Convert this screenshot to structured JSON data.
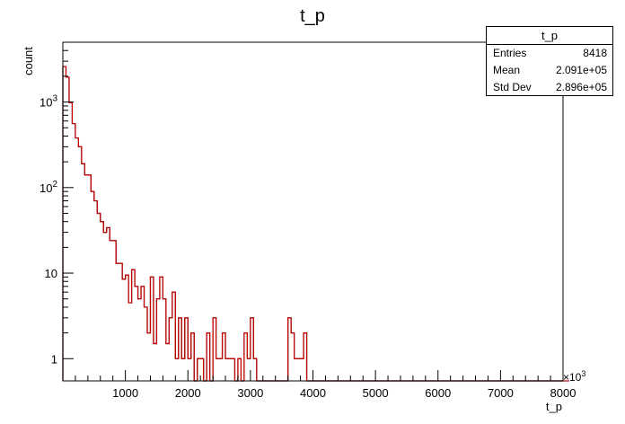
{
  "chart_data": {
    "type": "histogram",
    "title": "t_p",
    "xlabel": "t_p",
    "ylabel": "count",
    "x_axis_multiplier": "×10^3",
    "x_range": [
      0,
      8000
    ],
    "y_scale": "log",
    "y_range": [
      0.55,
      5000
    ],
    "x_tick_labels": [
      "1000",
      "2000",
      "3000",
      "4000",
      "5000",
      "6000",
      "7000",
      "8000"
    ],
    "x_ticks": [
      1000,
      2000,
      3000,
      4000,
      5000,
      6000,
      7000,
      8000
    ],
    "y_tick_labels": [
      {
        "value": 1,
        "base": "1",
        "exp": ""
      },
      {
        "value": 10,
        "base": "10",
        "exp": ""
      },
      {
        "value": 100,
        "base": "10",
        "exp": "2"
      },
      {
        "value": 1000,
        "base": "10",
        "exp": "3"
      }
    ],
    "bin_width": 50,
    "series": [
      {
        "color": "#000000",
        "values": [
          2600,
          1950,
          980,
          560,
          380,
          300,
          190,
          140,
          140,
          90,
          70,
          50,
          40,
          30,
          34,
          24,
          24,
          13,
          13,
          8.5,
          9.5,
          4.5,
          11,
          7,
          5,
          7,
          4,
          2,
          9,
          1.5,
          5,
          9,
          5,
          1.5,
          3,
          6,
          1,
          3,
          1,
          3,
          1,
          2,
          0,
          1,
          1,
          0,
          2,
          0,
          3,
          1,
          1,
          2,
          1,
          1,
          1,
          0,
          1,
          0,
          2,
          1,
          3,
          1,
          0,
          0,
          0,
          0,
          0,
          0,
          0,
          0,
          0,
          0,
          3,
          2,
          1,
          1,
          1,
          2,
          0,
          0,
          0,
          0,
          0,
          0,
          0,
          0,
          0,
          0,
          0,
          0,
          0,
          0,
          0,
          0,
          0,
          0,
          0,
          0,
          0,
          0,
          0,
          0,
          0,
          0,
          0,
          0,
          0,
          0,
          0,
          0,
          0,
          0,
          0,
          0,
          0,
          0,
          0,
          0,
          0,
          0,
          0,
          0,
          0,
          0,
          0,
          0,
          0,
          0,
          0,
          0,
          0,
          0,
          0,
          0,
          0,
          0,
          0,
          0,
          0,
          0,
          0,
          0,
          0,
          0,
          0,
          0,
          0,
          0,
          0,
          0,
          0,
          0,
          0,
          0,
          0,
          0,
          0,
          0,
          0,
          0
        ]
      },
      {
        "color": "#cc0000",
        "values": [
          2600,
          1950,
          980,
          560,
          380,
          300,
          190,
          140,
          140,
          90,
          70,
          50,
          40,
          30,
          34,
          24,
          24,
          13,
          13,
          8.5,
          9.5,
          4.5,
          11,
          7,
          5,
          7,
          4,
          2,
          9,
          1.5,
          5,
          9,
          5,
          1.5,
          3,
          6,
          1,
          3,
          1,
          3,
          1,
          2,
          0,
          1,
          1,
          0,
          2,
          0,
          3,
          1,
          1,
          2,
          1,
          1,
          1,
          0,
          1,
          0,
          2,
          1,
          3,
          1,
          0,
          0,
          0,
          0,
          0,
          0,
          0,
          0,
          0,
          0,
          3,
          2,
          1,
          1,
          1,
          2,
          0,
          0,
          0,
          0,
          0,
          0,
          0,
          0,
          0,
          0,
          0,
          0,
          0,
          0,
          0,
          0,
          0,
          0,
          0,
          0,
          0,
          0,
          0,
          0,
          0,
          0,
          0,
          0,
          0,
          0,
          0,
          0,
          0,
          0,
          0,
          0,
          0,
          0,
          0,
          0,
          0,
          0,
          0,
          0,
          0,
          0,
          0,
          0,
          0,
          0,
          0,
          0,
          0,
          0,
          0,
          0,
          0,
          0,
          0,
          0,
          0,
          0,
          0,
          0,
          0,
          0,
          0,
          0,
          0,
          0,
          0,
          0,
          0,
          0,
          0,
          0,
          0,
          0,
          0,
          0,
          0,
          0,
          0,
          0
        ]
      }
    ]
  },
  "stats": {
    "title": "t_p",
    "entries_label": "Entries",
    "entries_value": "8418",
    "mean_label": "Mean",
    "mean_value": "2.091e+05",
    "stddev_label": "Std Dev",
    "stddev_value": "2.896e+05"
  }
}
